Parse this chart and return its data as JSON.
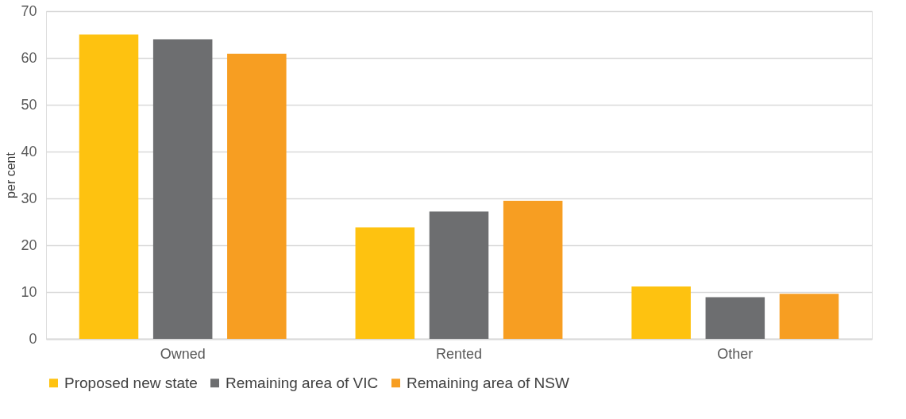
{
  "chart_data": {
    "type": "bar",
    "ylabel": "per cent",
    "categories": [
      "Owned",
      "Rented",
      "Other"
    ],
    "series": [
      {
        "name": "Proposed new state",
        "color": "#fec210",
        "values": [
          65,
          23.8,
          11.2
        ]
      },
      {
        "name": "Remaining area of VIC",
        "color": "#6d6e70",
        "values": [
          64,
          27.2,
          8.9
        ]
      },
      {
        "name": "Remaining area of NSW",
        "color": "#f79e22",
        "values": [
          60.9,
          29.5,
          9.6
        ]
      }
    ],
    "ylim": [
      0,
      70
    ],
    "yticks": [
      0,
      10,
      20,
      30,
      40,
      50,
      60,
      70
    ],
    "grid": "y",
    "legend": "bottom"
  }
}
